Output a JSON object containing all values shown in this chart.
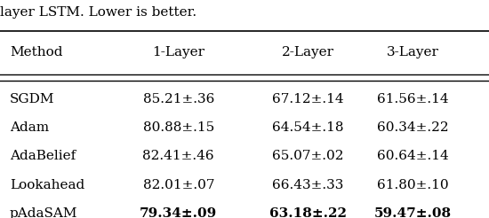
{
  "caption": "layer LSTM. Lower is better.",
  "columns": [
    "Method",
    "1-Layer",
    "2-Layer",
    "3-Layer"
  ],
  "rows": [
    [
      "SGDM",
      "85.21±.36",
      "67.12±.14",
      "61.56±.14"
    ],
    [
      "Adam",
      "80.88±.15",
      "64.54±.18",
      "60.34±.22"
    ],
    [
      "AdaBelief",
      "82.41±.46",
      "65.07±.02",
      "60.64±.14"
    ],
    [
      "Lookahead",
      "82.01±.07",
      "66.43±.33",
      "61.80±.10"
    ],
    [
      "pAdaSAM",
      "79.34±.09",
      "63.18±.22",
      "59.47±.08"
    ]
  ],
  "bold_row": 4,
  "bold_cols": [
    1,
    2,
    3
  ],
  "fig_width": 5.5,
  "fig_height": 2.46,
  "dpi": 100,
  "caption_fontsize": 11,
  "table_fontsize": 11,
  "background_color": "#ffffff"
}
